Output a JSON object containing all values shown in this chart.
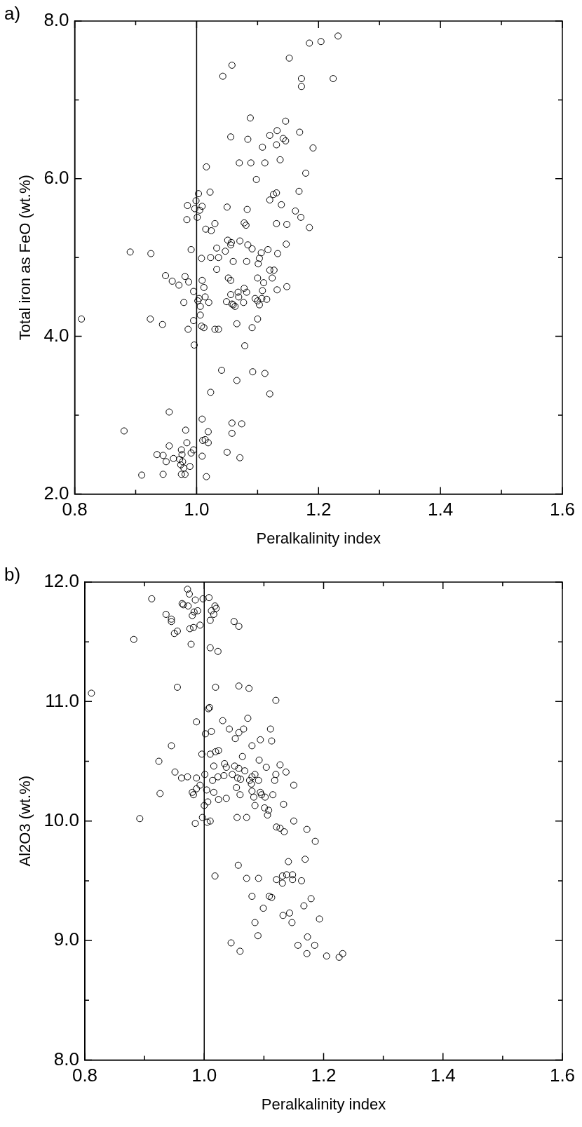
{
  "chart_data": [
    {
      "type": "scatter",
      "title": "a)",
      "xlabel": "Peralkalinity index",
      "ylabel": "Total iron as FeO (wt.%)",
      "color": "#000000",
      "marker": "circle",
      "xlim": [
        0.8,
        1.6
      ],
      "xticks": [
        {
          "value": 0.8,
          "label": "0.8"
        },
        {
          "value": 0.9,
          "label": null
        },
        {
          "value": 1.0,
          "label": "1.0"
        },
        {
          "value": 1.1,
          "label": null
        },
        {
          "value": 1.2,
          "label": "1.2"
        },
        {
          "value": 1.3,
          "label": null
        },
        {
          "value": 1.4,
          "label": "1.4"
        },
        {
          "value": 1.5,
          "label": null
        },
        {
          "value": 1.6,
          "label": "1.6"
        }
      ],
      "ylim": [
        2,
        8
      ],
      "yticks": [
        {
          "value": 2,
          "label": "2.0"
        },
        {
          "value": 3,
          "label": null
        },
        {
          "value": 4,
          "label": "4.0"
        },
        {
          "value": 5,
          "label": null
        },
        {
          "value": 6,
          "label": "6.0"
        },
        {
          "value": 7,
          "label": null
        },
        {
          "value": 8,
          "label": "8.0"
        }
      ],
      "ref_lines": [
        {
          "axis": "x",
          "value": 1.0,
          "color": "#000000"
        }
      ],
      "x": [
        1.232,
        1.204,
        1.185,
        1.152,
        1.058,
        1.043,
        1.172,
        1.224,
        1.172,
        1.088,
        1.146,
        1.132,
        1.169,
        1.12,
        1.056,
        1.142,
        1.146,
        1.084,
        1.131,
        1.108,
        1.191,
        1.137,
        1.07,
        1.089,
        1.112,
        1.016,
        1.179,
        1.098,
        1.168,
        1.022,
        1.003,
        1.131,
        1.126,
        1.12,
        0.999,
        0.985,
        1.009,
        1.139,
        1.05,
        0.997,
        1.005,
        1.083,
        1.162,
        1.171,
        0.984,
        1.001,
        1.03,
        1.078,
        1.081,
        1.131,
        1.148,
        1.185,
        1.015,
        1.024,
        1.051,
        1.071,
        1.057,
        1.147,
        1.056,
        1.084,
        1.033,
        0.991,
        1.091,
        1.117,
        0.891,
        0.925,
        1.047,
        1.106,
        1.133,
        1.008,
        1.023,
        1.036,
        1.103,
        1.06,
        1.082,
        1.101,
        1.033,
        1.12,
        1.127,
        1.124,
        1.052,
        1.056,
        1.1,
        0.949,
        0.981,
        0.96,
        0.987,
        1.009,
        0.971,
        1.11,
        1.012,
        1.148,
        1.132,
        1.078,
        0.995,
        1.068,
        1.108,
        1.082,
        1.056,
        1.069,
        1.014,
        1.096,
        1.004,
        1.107,
        1.115,
        1.002,
        1.049,
        0.979,
        1.02,
        1.1,
        1.077,
        1.058,
        1.06,
        1.063,
        1.103,
        1.006,
        1.006,
        1.1,
        0.995,
        0.811,
        0.924,
        0.944,
        1.066,
        1.008,
        1.012,
        0.986,
        1.03,
        1.036,
        1.091,
        0.996,
        1.079,
        1.041,
        1.092,
        1.112,
        1.066,
        1.023,
        1.12,
        0.955,
        1.009,
        1.058,
        1.074,
        0.881,
        0.982,
        1.019,
        1.058,
        0.984,
        1.01,
        1.019,
        1.014,
        0.955,
        0.975,
        0.995,
        0.991,
        1.05,
        0.935,
        0.945,
        0.976,
        0.962,
        0.972,
        1.009,
        1.071,
        0.95,
        0.977,
        0.974,
        0.989,
        0.979,
        0.91,
        0.945,
        0.975,
        0.981,
        1.016
      ],
      "values": [
        7.81,
        7.74,
        7.72,
        7.53,
        7.44,
        7.3,
        7.27,
        7.27,
        7.17,
        6.77,
        6.73,
        6.61,
        6.59,
        6.55,
        6.53,
        6.51,
        6.48,
        6.5,
        6.43,
        6.4,
        6.39,
        6.24,
        6.2,
        6.2,
        6.2,
        6.15,
        6.07,
        5.99,
        5.84,
        5.83,
        5.81,
        5.82,
        5.8,
        5.73,
        5.72,
        5.66,
        5.65,
        5.67,
        5.64,
        5.62,
        5.6,
        5.61,
        5.59,
        5.51,
        5.48,
        5.51,
        5.43,
        5.44,
        5.41,
        5.43,
        5.42,
        5.38,
        5.36,
        5.34,
        5.22,
        5.21,
        5.19,
        5.17,
        5.16,
        5.16,
        5.12,
        5.1,
        5.11,
        5.1,
        5.07,
        5.05,
        5.08,
        5.06,
        5.05,
        4.99,
        5.0,
        5.0,
        4.99,
        4.95,
        4.95,
        4.92,
        4.85,
        4.84,
        4.84,
        4.74,
        4.74,
        4.71,
        4.74,
        4.77,
        4.76,
        4.7,
        4.69,
        4.71,
        4.65,
        4.68,
        4.62,
        4.63,
        4.59,
        4.61,
        4.57,
        4.56,
        4.58,
        4.56,
        4.53,
        4.5,
        4.5,
        4.48,
        4.48,
        4.48,
        4.47,
        4.45,
        4.44,
        4.43,
        4.43,
        4.45,
        4.43,
        4.41,
        4.4,
        4.38,
        4.4,
        4.38,
        4.27,
        4.22,
        4.2,
        4.22,
        4.22,
        4.15,
        4.16,
        4.13,
        4.11,
        4.09,
        4.09,
        4.09,
        4.11,
        3.89,
        3.88,
        3.57,
        3.55,
        3.53,
        3.44,
        3.29,
        3.27,
        3.04,
        2.95,
        2.9,
        2.89,
        2.8,
        2.81,
        2.79,
        2.77,
        2.65,
        2.68,
        2.65,
        2.69,
        2.61,
        2.56,
        2.56,
        2.52,
        2.53,
        2.5,
        2.49,
        2.5,
        2.45,
        2.44,
        2.48,
        2.46,
        2.41,
        2.41,
        2.37,
        2.35,
        2.33,
        2.24,
        2.25,
        2.25,
        2.25,
        2.22
      ]
    },
    {
      "type": "scatter",
      "title": "b)",
      "xlabel": "Peralkalinity index",
      "ylabel": "Al2O3 (wt.%)",
      "color": "#000000",
      "marker": "circle",
      "xlim": [
        0.8,
        1.6
      ],
      "xticks": [
        {
          "value": 0.8,
          "label": "0.8"
        },
        {
          "value": 0.9,
          "label": null
        },
        {
          "value": 1.0,
          "label": "1.0"
        },
        {
          "value": 1.1,
          "label": null
        },
        {
          "value": 1.2,
          "label": "1.2"
        },
        {
          "value": 1.3,
          "label": null
        },
        {
          "value": 1.4,
          "label": "1.4"
        },
        {
          "value": 1.5,
          "label": null
        },
        {
          "value": 1.6,
          "label": "1.6"
        }
      ],
      "ylim": [
        8,
        12
      ],
      "yticks": [
        {
          "value": 8,
          "label": "8.0"
        },
        {
          "value": 8.5,
          "label": null
        },
        {
          "value": 9,
          "label": "9.0"
        },
        {
          "value": 9.5,
          "label": null
        },
        {
          "value": 10,
          "label": "10.0"
        },
        {
          "value": 10.5,
          "label": null
        },
        {
          "value": 11,
          "label": "11.0"
        },
        {
          "value": 11.5,
          "label": null
        },
        {
          "value": 12,
          "label": "12.0"
        }
      ],
      "ref_lines": [
        {
          "axis": "x",
          "value": 1.0,
          "color": "#000000"
        }
      ],
      "x": [
        0.912,
        0.965,
        0.972,
        0.975,
        0.985,
        0.998,
        1.008,
        1.018,
        0.936,
        0.945,
        0.945,
        0.955,
        0.95,
        0.882,
        0.976,
        0.982,
        0.993,
        0.978,
        0.98,
        0.983,
        0.989,
        1.01,
        1.016,
        1.012,
        1.02,
        1.05,
        1.058,
        1.01,
        1.023,
        0.973,
        0.963,
        0.811,
        0.955,
        1.019,
        1.058,
        1.075,
        1.12,
        1.007,
        1.009,
        0.987,
        1.031,
        1.073,
        1.042,
        1.012,
        1.066,
        1.111,
        1.002,
        1.058,
        1.052,
        1.094,
        1.113,
        0.945,
        1.08,
        0.996,
        1.01,
        1.019,
        1.024,
        1.064,
        0.924,
        1.092,
        1.016,
        1.034,
        1.037,
        1.051,
        1.058,
        1.104,
        1.127,
        0.951,
        1.001,
        1.023,
        1.033,
        1.047,
        1.068,
        1.085,
        1.12,
        1.137,
        0.962,
        0.972,
        0.987,
        1.014,
        1.056,
        1.061,
        1.08,
        1.076,
        1.091,
        1.118,
        1.15,
        0.993,
        1.054,
        1.079,
        0.987,
        1.004,
        0.98,
        0.926,
        0.982,
        1.016,
        1.06,
        1.08,
        1.094,
        1.096,
        1.115,
        1.024,
        1.037,
        1.083,
        1.102,
        1.006,
        1.0,
        1.085,
        1.101,
        1.133,
        1.108,
        1.106,
        0.997,
        1.055,
        1.071,
        0.892,
        1.01,
        1.005,
        0.985,
        1.15,
        1.121,
        1.127,
        1.134,
        1.172,
        1.186,
        1.169,
        1.141,
        1.057,
        1.018,
        1.071,
        1.091,
        1.121,
        1.131,
        1.138,
        1.148,
        1.148,
        1.163,
        1.131,
        1.08,
        1.109,
        1.113,
        1.179,
        1.099,
        1.167,
        1.143,
        1.132,
        1.193,
        1.085,
        1.147,
        1.09,
        1.173,
        1.045,
        1.157,
        1.185,
        1.06,
        1.172,
        1.205,
        1.226,
        1.232
      ],
      "values": [
        11.86,
        11.81,
        11.94,
        11.9,
        11.85,
        11.86,
        11.87,
        11.8,
        11.73,
        11.67,
        11.69,
        11.59,
        11.57,
        11.52,
        11.61,
        11.62,
        11.64,
        11.48,
        11.72,
        11.75,
        11.76,
        11.68,
        11.73,
        11.76,
        11.78,
        11.67,
        11.63,
        11.45,
        11.42,
        11.8,
        11.82,
        11.07,
        11.12,
        11.12,
        11.13,
        11.11,
        11.01,
        10.94,
        10.95,
        10.83,
        10.84,
        10.86,
        10.77,
        10.75,
        10.77,
        10.77,
        10.73,
        10.74,
        10.69,
        10.68,
        10.67,
        10.63,
        10.63,
        10.56,
        10.56,
        10.58,
        10.59,
        10.54,
        10.5,
        10.51,
        10.46,
        10.48,
        10.45,
        10.46,
        10.44,
        10.45,
        10.47,
        10.41,
        10.39,
        10.37,
        10.38,
        10.39,
        10.42,
        10.39,
        10.39,
        10.41,
        10.36,
        10.37,
        10.36,
        10.34,
        10.36,
        10.35,
        10.37,
        10.34,
        10.34,
        10.34,
        10.3,
        10.3,
        10.28,
        10.31,
        10.27,
        10.26,
        10.24,
        10.23,
        10.22,
        10.24,
        10.22,
        10.25,
        10.24,
        10.22,
        10.22,
        10.18,
        10.19,
        10.2,
        10.2,
        10.16,
        10.13,
        10.13,
        10.11,
        10.14,
        10.09,
        10.05,
        10.03,
        10.03,
        10.03,
        10.02,
        10.0,
        9.99,
        9.98,
        10.0,
        9.95,
        9.94,
        9.91,
        9.93,
        9.83,
        9.68,
        9.66,
        9.63,
        9.54,
        9.52,
        9.52,
        9.51,
        9.54,
        9.55,
        9.55,
        9.51,
        9.5,
        9.48,
        9.37,
        9.37,
        9.36,
        9.35,
        9.27,
        9.29,
        9.23,
        9.21,
        9.18,
        9.15,
        9.15,
        9.04,
        9.03,
        8.98,
        8.96,
        8.96,
        8.91,
        8.89,
        8.87,
        8.86,
        8.89
      ]
    }
  ]
}
